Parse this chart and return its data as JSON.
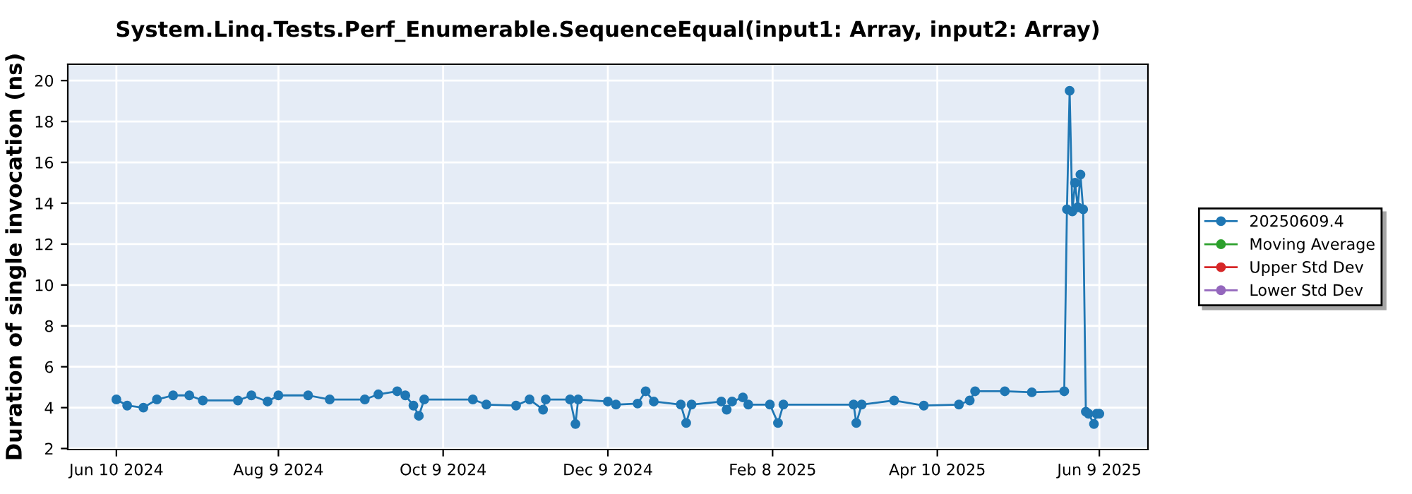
{
  "chart_data": {
    "type": "line",
    "title": "System.Linq.Tests.Perf_Enumerable.SequenceEqual(input1: Array, input2: Array)",
    "ylabel": "Duration of single invocation (ns)",
    "xlim": [
      "2024-05-23",
      "2025-06-27"
    ],
    "ylim": [
      1.95,
      20.8
    ],
    "xticks": [
      {
        "value": "2024-06-10",
        "label": "Jun 10 2024"
      },
      {
        "value": "2024-08-09",
        "label": "Aug 9 2024"
      },
      {
        "value": "2024-10-09",
        "label": "Oct 9 2024"
      },
      {
        "value": "2024-12-09",
        "label": "Dec 9 2024"
      },
      {
        "value": "2025-02-08",
        "label": "Feb 8 2025"
      },
      {
        "value": "2025-04-10",
        "label": "Apr 10 2025"
      },
      {
        "value": "2025-06-09",
        "label": "Jun 9 2025"
      }
    ],
    "yticks": [
      2,
      4,
      6,
      8,
      10,
      12,
      14,
      16,
      18,
      20
    ],
    "grid": true,
    "legend": "right",
    "marker": "circle",
    "line_style": "solid",
    "series": [
      {
        "name": "20250609.4",
        "color": "#1f77b4",
        "x": [
          "2024-06-10",
          "2024-06-14",
          "2024-06-20",
          "2024-06-25",
          "2024-07-01",
          "2024-07-07",
          "2024-07-12",
          "2024-07-25",
          "2024-07-30",
          "2024-08-05",
          "2024-08-09",
          "2024-08-20",
          "2024-08-28",
          "2024-09-10",
          "2024-09-15",
          "2024-09-22",
          "2024-09-25",
          "2024-09-28",
          "2024-09-30",
          "2024-10-02",
          "2024-10-20",
          "2024-10-25",
          "2024-11-05",
          "2024-11-10",
          "2024-11-15",
          "2024-11-16",
          "2024-11-25",
          "2024-11-27",
          "2024-11-28",
          "2024-12-09",
          "2024-12-12",
          "2024-12-20",
          "2024-12-23",
          "2024-12-26",
          "2025-01-05",
          "2025-01-07",
          "2025-01-09",
          "2025-01-20",
          "2025-01-22",
          "2025-01-24",
          "2025-01-28",
          "2025-01-30",
          "2025-02-07",
          "2025-02-10",
          "2025-02-12",
          "2025-03-10",
          "2025-03-11",
          "2025-03-13",
          "2025-03-25",
          "2025-04-05",
          "2025-04-18",
          "2025-04-22",
          "2025-04-24",
          "2025-05-05",
          "2025-05-15",
          "2025-05-27",
          "2025-05-28",
          "2025-05-29",
          "2025-05-30",
          "2025-05-31",
          "2025-06-01",
          "2025-06-02",
          "2025-06-03",
          "2025-06-04",
          "2025-06-05",
          "2025-06-07",
          "2025-06-08",
          "2025-06-09"
        ],
        "values": [
          4.4,
          4.1,
          4.0,
          4.4,
          4.6,
          4.6,
          4.35,
          4.35,
          4.6,
          4.3,
          4.6,
          4.6,
          4.4,
          4.4,
          4.65,
          4.8,
          4.6,
          4.1,
          3.6,
          4.4,
          4.4,
          4.15,
          4.1,
          4.4,
          3.9,
          4.4,
          4.4,
          3.2,
          4.4,
          4.3,
          4.15,
          4.2,
          4.8,
          4.3,
          4.15,
          3.25,
          4.15,
          4.3,
          3.9,
          4.3,
          4.5,
          4.15,
          4.15,
          3.25,
          4.15,
          4.15,
          3.25,
          4.15,
          4.35,
          4.1,
          4.15,
          4.35,
          4.8,
          4.8,
          4.75,
          4.8,
          13.7,
          19.5,
          13.6,
          15.0,
          13.8,
          15.4,
          13.7,
          3.8,
          3.7,
          3.2,
          3.7,
          3.7
        ]
      },
      {
        "name": "Moving Average",
        "color": "#2ca02c"
      },
      {
        "name": "Upper Std Dev",
        "color": "#d62728"
      },
      {
        "name": "Lower Std Dev",
        "color": "#9467bd"
      }
    ]
  }
}
